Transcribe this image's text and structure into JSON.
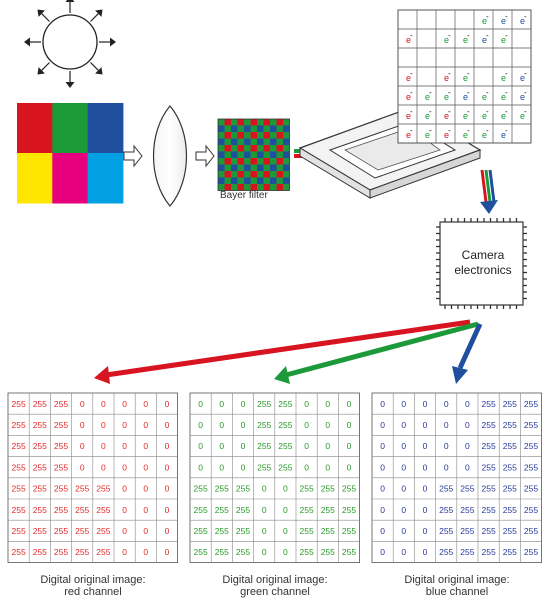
{
  "bayer_filter_label": "Bayer filter",
  "camera_label": "Camera electronics",
  "electron_symbol": "e",
  "electron_sign": "-",
  "colors": {
    "red": "#d7141f",
    "green": "#1c9a3a",
    "blue": "#1f4f9d",
    "yellow": "#ffe600",
    "magenta": "#e6007e",
    "cyan": "#00a0e3",
    "red_text": "#e32b2b",
    "green_text": "#2a9a2a",
    "blue_text": "#2a3a9a"
  },
  "source_colors": [
    "red",
    "green",
    "blue",
    "yellow",
    "magenta",
    "cyan"
  ],
  "sensor_electrons": [
    [
      null,
      null,
      null,
      null,
      "green",
      "blue",
      "blue"
    ],
    [
      "red",
      null,
      "green",
      "green",
      "blue",
      "green",
      null
    ],
    [
      null,
      null,
      null,
      null,
      null,
      null,
      null
    ],
    [
      "red",
      null,
      "red",
      "green",
      null,
      "green",
      "blue"
    ],
    [
      "red",
      "green",
      "green",
      "blue",
      "green",
      "green",
      "blue"
    ],
    [
      "red",
      "green",
      "red",
      "green",
      "green",
      "green",
      "green"
    ],
    [
      "red",
      "green",
      "red",
      "green",
      "green",
      "blue",
      null
    ]
  ],
  "channels": [
    {
      "name": "red",
      "label_line1": "Digital original image:",
      "label_line2": "red channel",
      "text_color": "red_text",
      "rows": [
        [
          "255",
          "255",
          "255",
          "0",
          "0",
          "0",
          "0",
          "0"
        ],
        [
          "255",
          "255",
          "255",
          "0",
          "0",
          "0",
          "0",
          "0"
        ],
        [
          "255",
          "255",
          "255",
          "0",
          "0",
          "0",
          "0",
          "0"
        ],
        [
          "255",
          "255",
          "255",
          "0",
          "0",
          "0",
          "0",
          "0"
        ],
        [
          "255",
          "255",
          "255",
          "255",
          "255",
          "0",
          "0",
          "0"
        ],
        [
          "255",
          "255",
          "255",
          "255",
          "255",
          "0",
          "0",
          "0"
        ],
        [
          "255",
          "255",
          "255",
          "255",
          "255",
          "0",
          "0",
          "0"
        ],
        [
          "255",
          "255",
          "255",
          "255",
          "255",
          "0",
          "0",
          "0"
        ]
      ]
    },
    {
      "name": "green",
      "label_line1": "Digital original image:",
      "label_line2": "green channel",
      "text_color": "green_text",
      "rows": [
        [
          "0",
          "0",
          "0",
          "255",
          "255",
          "0",
          "0",
          "0"
        ],
        [
          "0",
          "0",
          "0",
          "255",
          "255",
          "0",
          "0",
          "0"
        ],
        [
          "0",
          "0",
          "0",
          "255",
          "255",
          "0",
          "0",
          "0"
        ],
        [
          "0",
          "0",
          "0",
          "255",
          "255",
          "0",
          "0",
          "0"
        ],
        [
          "255",
          "255",
          "255",
          "0",
          "0",
          "255",
          "255",
          "255"
        ],
        [
          "255",
          "255",
          "255",
          "0",
          "0",
          "255",
          "255",
          "255"
        ],
        [
          "255",
          "255",
          "255",
          "0",
          "0",
          "255",
          "255",
          "255"
        ],
        [
          "255",
          "255",
          "255",
          "0",
          "0",
          "255",
          "255",
          "255"
        ]
      ]
    },
    {
      "name": "blue",
      "label_line1": "Digital original image:",
      "label_line2": "blue channel",
      "text_color": "blue_text",
      "rows": [
        [
          "0",
          "0",
          "0",
          "0",
          "0",
          "255",
          "255",
          "255"
        ],
        [
          "0",
          "0",
          "0",
          "0",
          "0",
          "255",
          "255",
          "255"
        ],
        [
          "0",
          "0",
          "0",
          "0",
          "0",
          "255",
          "255",
          "255"
        ],
        [
          "0",
          "0",
          "0",
          "0",
          "0",
          "255",
          "255",
          "255"
        ],
        [
          "0",
          "0",
          "0",
          "255",
          "255",
          "255",
          "255",
          "255"
        ],
        [
          "0",
          "0",
          "0",
          "255",
          "255",
          "255",
          "255",
          "255"
        ],
        [
          "0",
          "0",
          "0",
          "255",
          "255",
          "255",
          "255",
          "255"
        ],
        [
          "0",
          "0",
          "0",
          "255",
          "255",
          "255",
          "255",
          "255"
        ]
      ]
    }
  ]
}
